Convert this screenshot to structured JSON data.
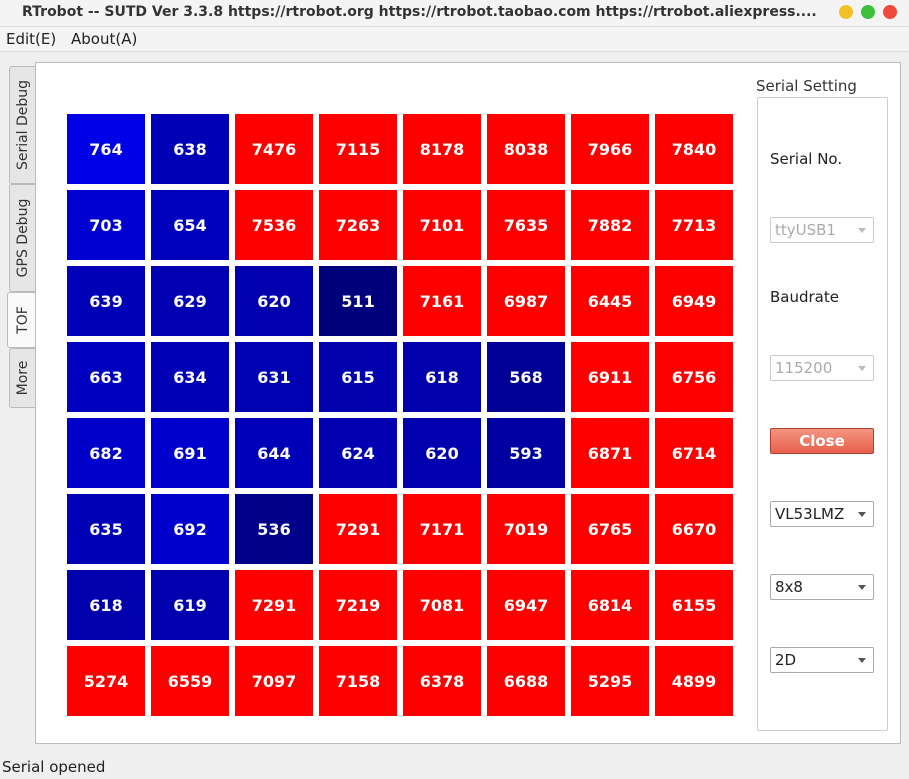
{
  "window": {
    "title": "RTrobot -- SUTD Ver 3.3.8  https://rtrobot.org  https://rtrobot.taobao.com  https://rtrobot.aliexpress...."
  },
  "menu": [
    "Edit(E)",
    "About(A)"
  ],
  "tabs": [
    "Serial Debug",
    "GPS Debug",
    "TOF",
    "More"
  ],
  "grid": [
    [
      764,
      638,
      7476,
      7115,
      8178,
      8038,
      7966,
      7840
    ],
    [
      703,
      654,
      7536,
      7263,
      7101,
      7635,
      7882,
      7713
    ],
    [
      639,
      629,
      620,
      511,
      7161,
      6987,
      6445,
      6949
    ],
    [
      663,
      634,
      631,
      615,
      618,
      568,
      6911,
      6756
    ],
    [
      682,
      691,
      644,
      624,
      620,
      593,
      6871,
      6714
    ],
    [
      635,
      692,
      536,
      7291,
      7171,
      7019,
      6765,
      6670
    ],
    [
      618,
      619,
      7291,
      7219,
      7081,
      6947,
      6814,
      6155
    ],
    [
      5274,
      6559,
      7097,
      7158,
      6378,
      6688,
      5295,
      4899
    ]
  ],
  "settings": {
    "title": "Serial Setting",
    "serial_label": "Serial No.",
    "serial_port": "ttyUSB1",
    "baud_label": "Baudrate",
    "baudrate": "115200",
    "button": "Close",
    "sensor": "VL53LMZ",
    "resolution": "8x8",
    "mode": "2D"
  },
  "status": "Serial opened"
}
